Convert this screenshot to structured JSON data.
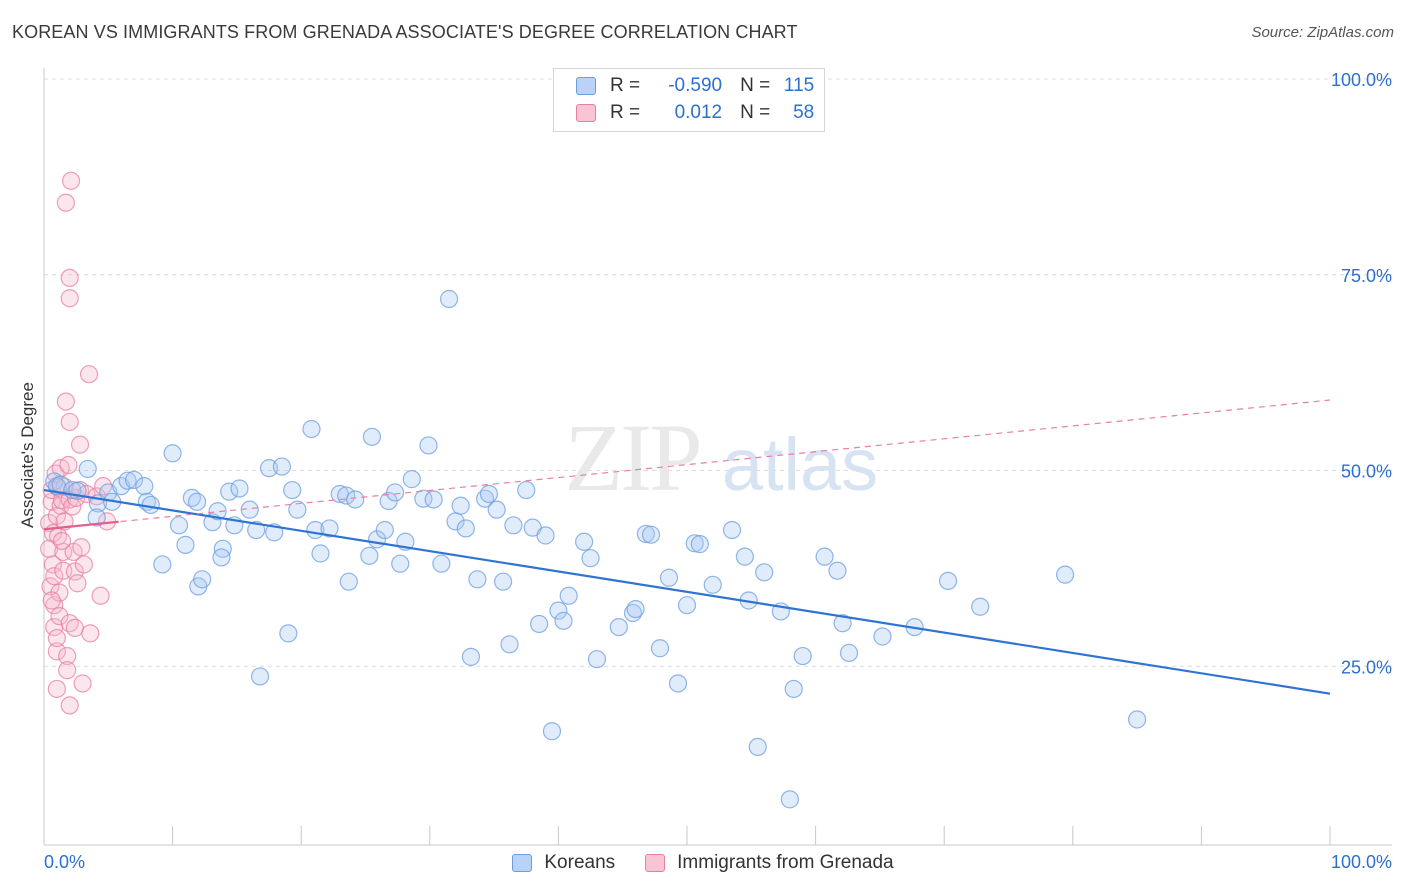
{
  "title": "KOREAN VS IMMIGRANTS FROM GRENADA ASSOCIATE'S DEGREE CORRELATION CHART",
  "source": "Source: ZipAtlas.com",
  "watermark": {
    "zip": "ZIP",
    "atlas": "atlas"
  },
  "legend": {
    "rows": [
      {
        "r_label": "R =",
        "r_value": "-0.590",
        "n_label": "N =",
        "n_value": "115"
      },
      {
        "r_label": "R =",
        "r_value": "0.012",
        "n_label": "N =",
        "n_value": "58"
      }
    ]
  },
  "chart_data": {
    "type": "scatter",
    "ylabel": "Associate's Degree",
    "xlim": [
      0,
      100
    ],
    "ylim": [
      0,
      100
    ],
    "x_tick_labels": {
      "left": "0.0%",
      "right": "100.0%"
    },
    "y_ticks": [
      {
        "value": 25,
        "label": "25.0%"
      },
      {
        "value": 50,
        "label": "50.0%"
      },
      {
        "value": 75,
        "label": "75.0%"
      },
      {
        "value": 100,
        "label": "100.0%"
      }
    ],
    "grid": true,
    "colors": {
      "koreans": "#6b9de0",
      "grenada": "#e87fa3",
      "tick_label": "#2d6fd1"
    },
    "series": [
      {
        "name": "Koreans",
        "trend": {
          "x": [
            0,
            100
          ],
          "y": [
            47.5,
            21.5
          ]
        },
        "points": [
          [
            0.8,
            48.6
          ],
          [
            1,
            48
          ],
          [
            1.3,
            48.2
          ],
          [
            2.2,
            47.5
          ],
          [
            3.4,
            50.2
          ],
          [
            4.2,
            45.8
          ],
          [
            4.1,
            44.0
          ],
          [
            5,
            47.2
          ],
          [
            5.3,
            46.0
          ],
          [
            6,
            48
          ],
          [
            6.5,
            48.7
          ],
          [
            7,
            48.8
          ],
          [
            7.8,
            48
          ],
          [
            8,
            46
          ],
          [
            8.3,
            45.6
          ],
          [
            9.2,
            38
          ],
          [
            10,
            52.2
          ],
          [
            10.5,
            43
          ],
          [
            11,
            40.5
          ],
          [
            11.5,
            46.5
          ],
          [
            11.9,
            46
          ],
          [
            12,
            35.2
          ],
          [
            12.3,
            36.1
          ],
          [
            13.1,
            43.4
          ],
          [
            13.5,
            44.8
          ],
          [
            13.9,
            40
          ],
          [
            14.4,
            47.3
          ],
          [
            14.8,
            43
          ],
          [
            15.2,
            47.7
          ],
          [
            16,
            45
          ],
          [
            16.5,
            42.4
          ],
          [
            16.8,
            23.7
          ],
          [
            17.5,
            50.3
          ],
          [
            17.9,
            42.1
          ],
          [
            18.5,
            50.5
          ],
          [
            19,
            29.2
          ],
          [
            19.3,
            47.5
          ],
          [
            19.7,
            45
          ],
          [
            20.8,
            55.3
          ],
          [
            21.1,
            42.4
          ],
          [
            21.5,
            39.4
          ],
          [
            22.2,
            42.6
          ],
          [
            23,
            47
          ],
          [
            23.5,
            46.8
          ],
          [
            23.7,
            35.8
          ],
          [
            24.2,
            46.3
          ],
          [
            25.3,
            39.1
          ],
          [
            25.5,
            54.3
          ],
          [
            25.9,
            41.2
          ],
          [
            26.5,
            42.4
          ],
          [
            26.8,
            46.1
          ],
          [
            27.3,
            47.2
          ],
          [
            27.7,
            38.1
          ],
          [
            28.1,
            40.9
          ],
          [
            28.6,
            48.9
          ],
          [
            29.5,
            46.4
          ],
          [
            29.9,
            53.2
          ],
          [
            30.3,
            46.3
          ],
          [
            30.9,
            38.1
          ],
          [
            31.5,
            71.9
          ],
          [
            32,
            43.5
          ],
          [
            32.4,
            45.5
          ],
          [
            32.8,
            42.6
          ],
          [
            33.2,
            26.2
          ],
          [
            33.7,
            36.1
          ],
          [
            34.3,
            46.4
          ],
          [
            34.6,
            47.0
          ],
          [
            35.2,
            45
          ],
          [
            35.7,
            35.8
          ],
          [
            36.2,
            27.8
          ],
          [
            36.5,
            43
          ],
          [
            37.5,
            47.5
          ],
          [
            38,
            42.7
          ],
          [
            38.5,
            30.4
          ],
          [
            39,
            41.7
          ],
          [
            39.5,
            16.7
          ],
          [
            40,
            32.1
          ],
          [
            40.8,
            34
          ],
          [
            42,
            40.9
          ],
          [
            42.5,
            38.8
          ],
          [
            43,
            25.9
          ],
          [
            44.7,
            30.0
          ],
          [
            45.8,
            31.8
          ],
          [
            46,
            32.3
          ],
          [
            46.8,
            41.9
          ],
          [
            47.2,
            41.8
          ],
          [
            47.9,
            27.3
          ],
          [
            48.6,
            36.3
          ],
          [
            49.3,
            22.8
          ],
          [
            50,
            32.8
          ],
          [
            50.6,
            40.7
          ],
          [
            51,
            40.6
          ],
          [
            52,
            35.4
          ],
          [
            53.5,
            42.4
          ],
          [
            54.5,
            39
          ],
          [
            54.8,
            33.4
          ],
          [
            55.5,
            14.7
          ],
          [
            56,
            37
          ],
          [
            57.3,
            32
          ],
          [
            58.3,
            22.1
          ],
          [
            58,
            8
          ],
          [
            59,
            26.3
          ],
          [
            60.7,
            39.0
          ],
          [
            61.7,
            37.2
          ],
          [
            62.1,
            30.5
          ],
          [
            62.6,
            26.7
          ],
          [
            65.2,
            28.8
          ],
          [
            67.7,
            30.0
          ],
          [
            70.3,
            35.9
          ],
          [
            72.8,
            32.6
          ],
          [
            79.4,
            36.7
          ],
          [
            85,
            18.2
          ],
          [
            2.6,
            47.4
          ],
          [
            13.8,
            38.9
          ],
          [
            40.4,
            30.8
          ]
        ]
      },
      {
        "name": "Immigrants from Grenada",
        "trend": {
          "x": [
            0,
            100
          ],
          "y": [
            42.5,
            59
          ]
        },
        "trend_solid_x": [
          0,
          5.8
        ],
        "points": [
          [
            0.4,
            43.3
          ],
          [
            0.4,
            40
          ],
          [
            0.5,
            35.2
          ],
          [
            0.6,
            46
          ],
          [
            0.6,
            47.5
          ],
          [
            0.7,
            38
          ],
          [
            0.7,
            42
          ],
          [
            0.8,
            36.5
          ],
          [
            0.8,
            32.8
          ],
          [
            0.8,
            30
          ],
          [
            0.9,
            49.6
          ],
          [
            1,
            44.2
          ],
          [
            1,
            26.9
          ],
          [
            1,
            28.6
          ],
          [
            1,
            22.1
          ],
          [
            1.1,
            47.8
          ],
          [
            1.1,
            41.6
          ],
          [
            1.2,
            34.4
          ],
          [
            1.2,
            31.4
          ],
          [
            1.3,
            45.5
          ],
          [
            1.3,
            50.3
          ],
          [
            1.4,
            46.2
          ],
          [
            1.5,
            39.6
          ],
          [
            1.5,
            37.2
          ],
          [
            1.6,
            43.5
          ],
          [
            1.6,
            47.9
          ],
          [
            1.7,
            84.2
          ],
          [
            1.7,
            58.8
          ],
          [
            1.8,
            26.3
          ],
          [
            1.8,
            24.5
          ],
          [
            1.9,
            50.7
          ],
          [
            2,
            74.6
          ],
          [
            2,
            72
          ],
          [
            2,
            56.2
          ],
          [
            2,
            46.3
          ],
          [
            2,
            30.5
          ],
          [
            2,
            20
          ],
          [
            2.1,
            87
          ],
          [
            2.2,
            45.4
          ],
          [
            2.3,
            39.6
          ],
          [
            2.4,
            37.1
          ],
          [
            2.4,
            29.9
          ],
          [
            2.5,
            46.5
          ],
          [
            2.6,
            35.6
          ],
          [
            2.8,
            53.3
          ],
          [
            2.8,
            47.5
          ],
          [
            2.9,
            40.2
          ],
          [
            3,
            22.8
          ],
          [
            3.1,
            38
          ],
          [
            3.3,
            47
          ],
          [
            3.5,
            62.3
          ],
          [
            3.6,
            29.2
          ],
          [
            4.1,
            46.7
          ],
          [
            4.4,
            34
          ],
          [
            4.6,
            48
          ],
          [
            4.9,
            43.5
          ],
          [
            0.6,
            33.4
          ],
          [
            1.4,
            41
          ]
        ]
      }
    ]
  }
}
